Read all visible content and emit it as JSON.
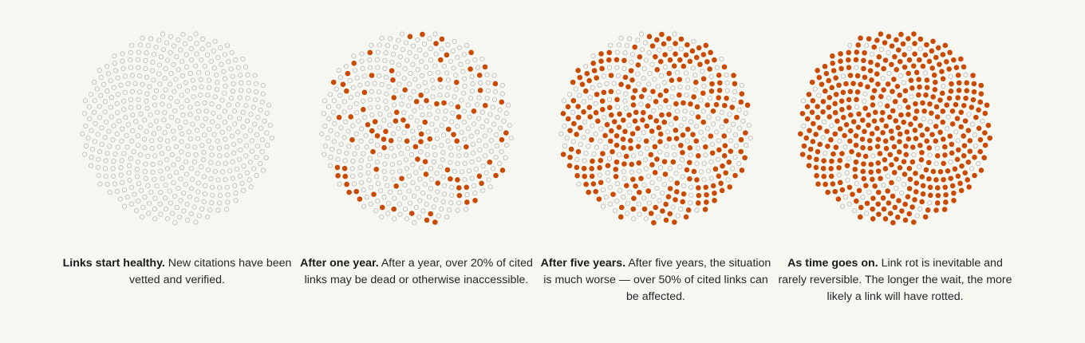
{
  "colors": {
    "background": "#f7f7f2",
    "dead_fill": "#c94a05",
    "live_stroke": "#b9b9b9",
    "text": "#262626"
  },
  "dot_count": 500,
  "panels": [
    {
      "heading": "Links start healthy.",
      "body": "New citations have been vetted and verified.",
      "dead_fraction": 0.0
    },
    {
      "heading": "After one year.",
      "body": "After a year, over 20% of cited links may be dead or otherwise inaccessible.",
      "dead_fraction": 0.2
    },
    {
      "heading": "After five years.",
      "body": "After five years, the situation is much worse — over 50% of cited links can be affected.",
      "dead_fraction": 0.55
    },
    {
      "heading": "As time goes on.",
      "body": "Link rot is inevitable and rarely reversible. The longer the wait, the more likely a link will have rotted.",
      "dead_fraction": 0.85
    }
  ]
}
